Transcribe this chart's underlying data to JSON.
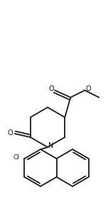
{
  "bg_color": "#ffffff",
  "line_color": "#1a1a1a",
  "line_width": 1.3,
  "figsize": [
    1.52,
    3.08
  ],
  "dpi": 100,
  "xlim": [
    0,
    152
  ],
  "ylim": [
    0,
    308
  ]
}
